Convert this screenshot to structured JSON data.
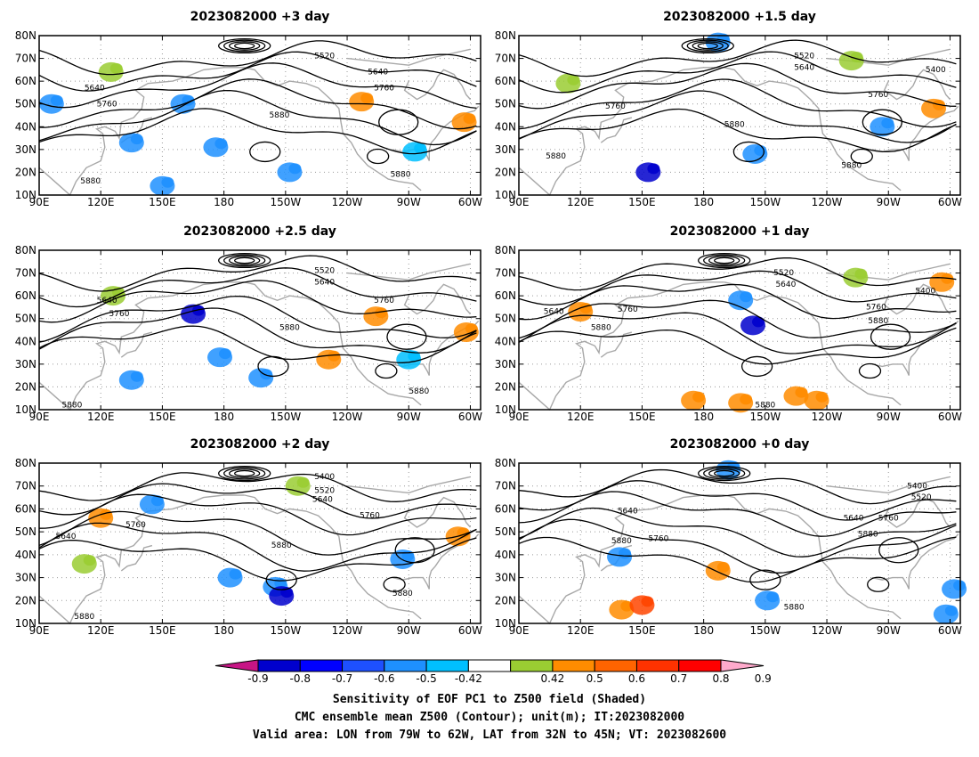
{
  "chart_data": [
    {
      "type": "heatmap",
      "title": "2023082000 +3 day",
      "shaded_patches": [
        {
          "lon": 135,
          "lat": 33,
          "color": "#1e90ff"
        },
        {
          "lon": 150,
          "lat": 14,
          "color": "#1e90ff"
        },
        {
          "lon": 176,
          "lat": 31,
          "color": "#1e90ff"
        },
        {
          "lon": 160,
          "lat": 50,
          "color": "#1e90ff"
        },
        {
          "lon": 212,
          "lat": 20,
          "color": "#1e90ff"
        },
        {
          "lon": 247,
          "lat": 51,
          "color": "#ff8c00"
        },
        {
          "lon": 297,
          "lat": 42,
          "color": "#ff8c00"
        },
        {
          "lon": 273,
          "lat": 29,
          "color": "#00bfff"
        },
        {
          "lon": 96,
          "lat": 50,
          "color": "#1e90ff"
        },
        {
          "lon": 125,
          "lat": 64,
          "color": "#9acd32"
        }
      ],
      "contour_labels": [
        {
          "lon": 117,
          "lat": 56,
          "text": "5640"
        },
        {
          "lon": 123,
          "lat": 49,
          "text": "5760"
        },
        {
          "lon": 229,
          "lat": 70,
          "text": "5520"
        },
        {
          "lon": 255,
          "lat": 63,
          "text": "5640"
        },
        {
          "lon": 258,
          "lat": 56,
          "text": "5760"
        },
        {
          "lon": 207,
          "lat": 44,
          "text": "5880"
        },
        {
          "lon": 266,
          "lat": 18,
          "text": "5880"
        },
        {
          "lon": 115,
          "lat": 15,
          "text": "5880"
        }
      ]
    },
    {
      "type": "heatmap",
      "title": "2023082000 +1.5 day",
      "shaded_patches": [
        {
          "lon": 187,
          "lat": 77,
          "color": "#1e90ff"
        },
        {
          "lon": 114,
          "lat": 59,
          "color": "#9acd32"
        },
        {
          "lon": 153,
          "lat": 20,
          "color": "#0000cd"
        },
        {
          "lon": 205,
          "lat": 28,
          "color": "#1e90ff"
        },
        {
          "lon": 267,
          "lat": 40,
          "color": "#1e90ff"
        },
        {
          "lon": 292,
          "lat": 48,
          "color": "#ff8c00"
        },
        {
          "lon": 252,
          "lat": 69,
          "color": "#9acd32"
        }
      ],
      "contour_labels": [
        {
          "lon": 229,
          "lat": 70,
          "text": "5520"
        },
        {
          "lon": 229,
          "lat": 65,
          "text": "5640"
        },
        {
          "lon": 293,
          "lat": 64,
          "text": "5400"
        },
        {
          "lon": 265,
          "lat": 53,
          "text": "5760"
        },
        {
          "lon": 137,
          "lat": 48,
          "text": "5760"
        },
        {
          "lon": 195,
          "lat": 40,
          "text": "5880"
        },
        {
          "lon": 252,
          "lat": 22,
          "text": "5880"
        },
        {
          "lon": 108,
          "lat": 26,
          "text": "5880"
        }
      ]
    },
    {
      "type": "heatmap",
      "title": "2023082000 +2.5 day",
      "shaded_patches": [
        {
          "lon": 178,
          "lat": 33,
          "color": "#1e90ff"
        },
        {
          "lon": 198,
          "lat": 24,
          "color": "#1e90ff"
        },
        {
          "lon": 135,
          "lat": 23,
          "color": "#1e90ff"
        },
        {
          "lon": 165,
          "lat": 52,
          "color": "#0000cd"
        },
        {
          "lon": 231,
          "lat": 32,
          "color": "#ff8c00"
        },
        {
          "lon": 254,
          "lat": 51,
          "color": "#ff8c00"
        },
        {
          "lon": 298,
          "lat": 44,
          "color": "#ff8c00"
        },
        {
          "lon": 270,
          "lat": 32,
          "color": "#00bfff"
        },
        {
          "lon": 126,
          "lat": 60,
          "color": "#9acd32"
        }
      ],
      "contour_labels": [
        {
          "lon": 229,
          "lat": 70,
          "text": "5520"
        },
        {
          "lon": 229,
          "lat": 65,
          "text": "5640"
        },
        {
          "lon": 123,
          "lat": 57,
          "text": "5640"
        },
        {
          "lon": 129,
          "lat": 51,
          "text": "5760"
        },
        {
          "lon": 258,
          "lat": 57,
          "text": "5760"
        },
        {
          "lon": 212,
          "lat": 45,
          "text": "5880"
        },
        {
          "lon": 275,
          "lat": 17,
          "text": "5880"
        },
        {
          "lon": 106,
          "lat": 11,
          "text": "5880"
        }
      ]
    },
    {
      "type": "heatmap",
      "title": "2023082000 +1 day",
      "shaded_patches": [
        {
          "lon": 175,
          "lat": 14,
          "color": "#ff8c00"
        },
        {
          "lon": 198,
          "lat": 13,
          "color": "#ff8c00"
        },
        {
          "lon": 225,
          "lat": 16,
          "color": "#ff8c00"
        },
        {
          "lon": 235,
          "lat": 14,
          "color": "#ff8c00"
        },
        {
          "lon": 204,
          "lat": 47,
          "color": "#0000cd"
        },
        {
          "lon": 198,
          "lat": 58,
          "color": "#1e90ff"
        },
        {
          "lon": 296,
          "lat": 66,
          "color": "#ff8c00"
        },
        {
          "lon": 120,
          "lat": 53,
          "color": "#ff8c00"
        },
        {
          "lon": 254,
          "lat": 68,
          "color": "#9acd32"
        }
      ],
      "contour_labels": [
        {
          "lon": 219,
          "lat": 69,
          "text": "5520"
        },
        {
          "lon": 220,
          "lat": 64,
          "text": "5640"
        },
        {
          "lon": 288,
          "lat": 61,
          "text": "5400"
        },
        {
          "lon": 107,
          "lat": 52,
          "text": "5640"
        },
        {
          "lon": 143,
          "lat": 53,
          "text": "5760"
        },
        {
          "lon": 130,
          "lat": 45,
          "text": "5880"
        },
        {
          "lon": 264,
          "lat": 54,
          "text": "5760"
        },
        {
          "lon": 265,
          "lat": 48,
          "text": "5880"
        },
        {
          "lon": 210,
          "lat": 11,
          "text": "5880"
        }
      ]
    },
    {
      "type": "heatmap",
      "title": "2023082000 +2 day",
      "shaded_patches": [
        {
          "lon": 120,
          "lat": 56,
          "color": "#ff8c00"
        },
        {
          "lon": 145,
          "lat": 62,
          "color": "#1e90ff"
        },
        {
          "lon": 205,
          "lat": 26,
          "color": "#1e90ff"
        },
        {
          "lon": 208,
          "lat": 22,
          "color": "#0000cd"
        },
        {
          "lon": 183,
          "lat": 30,
          "color": "#1e90ff"
        },
        {
          "lon": 267,
          "lat": 38,
          "color": "#1e90ff"
        },
        {
          "lon": 294,
          "lat": 48,
          "color": "#ff8c00"
        },
        {
          "lon": 216,
          "lat": 70,
          "color": "#9acd32"
        },
        {
          "lon": 112,
          "lat": 36,
          "color": "#9acd32"
        }
      ],
      "contour_labels": [
        {
          "lon": 229,
          "lat": 73,
          "text": "5400"
        },
        {
          "lon": 229,
          "lat": 67,
          "text": "5520"
        },
        {
          "lon": 228,
          "lat": 63,
          "text": "5640"
        },
        {
          "lon": 103,
          "lat": 47,
          "text": "5640"
        },
        {
          "lon": 137,
          "lat": 52,
          "text": "5760"
        },
        {
          "lon": 251,
          "lat": 56,
          "text": "5760"
        },
        {
          "lon": 208,
          "lat": 43,
          "text": "5880"
        },
        {
          "lon": 267,
          "lat": 22,
          "text": "5880"
        },
        {
          "lon": 112,
          "lat": 12,
          "text": "5880"
        }
      ]
    },
    {
      "type": "heatmap",
      "title": "2023082000 +0 day",
      "shaded_patches": [
        {
          "lon": 140,
          "lat": 16,
          "color": "#ff8c00"
        },
        {
          "lon": 150,
          "lat": 18,
          "color": "#ff4500"
        },
        {
          "lon": 187,
          "lat": 33,
          "color": "#ff8c00"
        },
        {
          "lon": 211,
          "lat": 20,
          "color": "#1e90ff"
        },
        {
          "lon": 298,
          "lat": 14,
          "color": "#1e90ff"
        },
        {
          "lon": 139,
          "lat": 39,
          "color": "#1e90ff"
        },
        {
          "lon": 302,
          "lat": 25,
          "color": "#1e90ff"
        },
        {
          "lon": 192,
          "lat": 77,
          "color": "#1e90ff"
        }
      ],
      "contour_labels": [
        {
          "lon": 284,
          "lat": 69,
          "text": "5400"
        },
        {
          "lon": 286,
          "lat": 64,
          "text": "5520"
        },
        {
          "lon": 253,
          "lat": 55,
          "text": "5640"
        },
        {
          "lon": 270,
          "lat": 55,
          "text": "5760"
        },
        {
          "lon": 260,
          "lat": 48,
          "text": "5880"
        },
        {
          "lon": 143,
          "lat": 58,
          "text": "5640"
        },
        {
          "lon": 158,
          "lat": 46,
          "text": "5760"
        },
        {
          "lon": 140,
          "lat": 45,
          "text": "5880"
        },
        {
          "lon": 224,
          "lat": 16,
          "text": "5880"
        }
      ]
    }
  ],
  "axes": {
    "lat_ticks": [
      "10N",
      "20N",
      "30N",
      "40N",
      "50N",
      "60N",
      "70N",
      "80N"
    ],
    "lon_ticks": [
      "90E",
      "120E",
      "150E",
      "180",
      "150W",
      "120W",
      "90W",
      "60W"
    ],
    "lat_range": [
      10,
      80
    ],
    "lon_range": [
      90,
      305
    ]
  },
  "colorbar": {
    "labels": [
      "-0.9",
      "-0.8",
      "-0.7",
      "-0.6",
      "-0.5",
      "-0.42",
      "0.42",
      "0.5",
      "0.6",
      "0.7",
      "0.8",
      "0.9"
    ],
    "colors": [
      "#c71585",
      "#0000cd",
      "#0000ff",
      "#1e50ff",
      "#1e90ff",
      "#00bfff",
      "#ffffff",
      "#9acd32",
      "#ff8c00",
      "#ff6400",
      "#ff3200",
      "#ff0000",
      "#ffaacc"
    ]
  },
  "captions": {
    "line1": "Sensitivity of EOF PC1 to Z500 field (Shaded)",
    "line2": "CMC ensemble mean Z500 (Contour); unit(m); IT:2023082000",
    "line3": "Valid area: LON from 79W to 62W, LAT from 32N to 45N; VT: 2023082600"
  }
}
